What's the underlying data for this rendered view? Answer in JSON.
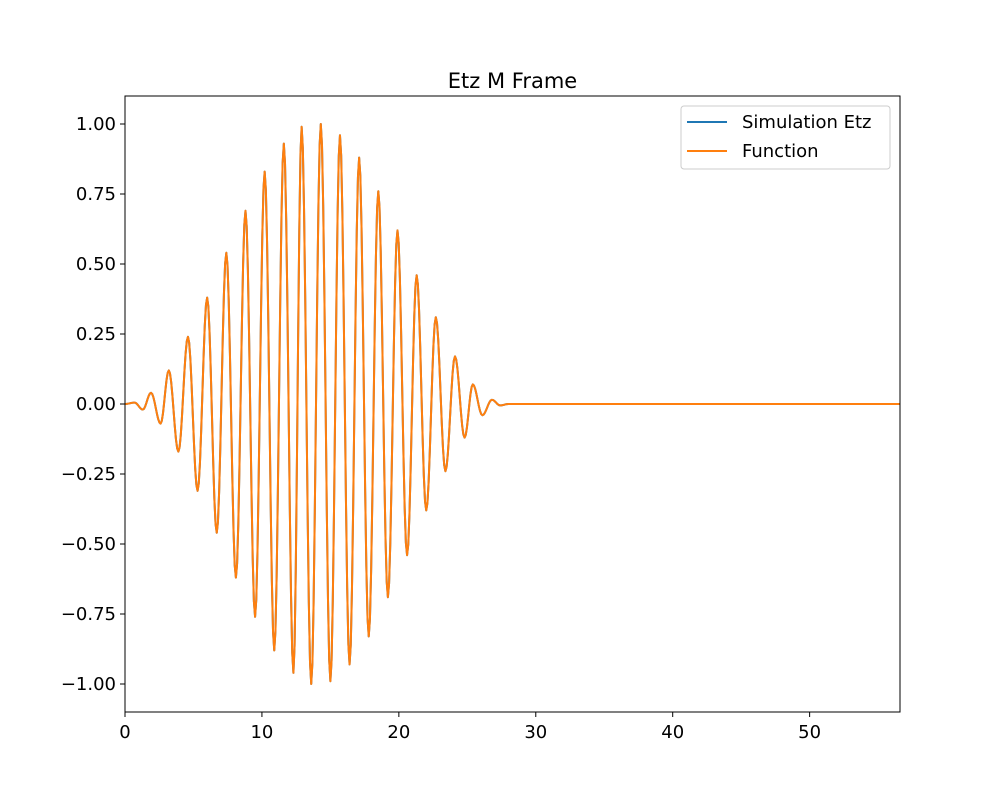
{
  "chart_data": {
    "type": "line",
    "title": "Etz M Frame",
    "xlabel": "",
    "ylabel": "",
    "xlim": [
      0,
      56.6
    ],
    "ylim": [
      -1.1,
      1.1
    ],
    "x_ticks": [
      0,
      10,
      20,
      30,
      40,
      50
    ],
    "x_tick_labels": [
      "0",
      "10",
      "20",
      "30",
      "40",
      "50"
    ],
    "y_ticks": [
      1.0,
      0.75,
      0.5,
      0.25,
      0.0,
      -0.25,
      -0.5,
      -0.75,
      -1.0
    ],
    "y_tick_labels": [
      "1.00",
      "0.75",
      "0.50",
      "0.25",
      "0.00",
      "−0.25",
      "−0.50",
      "−0.75",
      "−1.00"
    ],
    "grid": false,
    "legend_position": "top-right",
    "series": [
      {
        "name": "Simulation Etz",
        "color": "#1f77b4",
        "envelope": "gaussian",
        "x": [
          0.0,
          0.7,
          1.3,
          1.9,
          2.6,
          3.2,
          3.9,
          4.6,
          5.3,
          6.0,
          6.7,
          7.4,
          8.1,
          8.8,
          9.5,
          10.2,
          10.9,
          11.6,
          12.3,
          12.9,
          13.6,
          14.3,
          15.0,
          15.7,
          16.4,
          17.1,
          17.8,
          18.5,
          19.2,
          19.9,
          20.6,
          21.3,
          22.0,
          22.7,
          23.4,
          24.1,
          24.8,
          25.4,
          26.1,
          26.8,
          27.4,
          28.0,
          56.6
        ],
        "y": [
          0.0,
          0.005,
          -0.02,
          0.04,
          -0.07,
          0.12,
          -0.17,
          0.24,
          -0.31,
          0.38,
          -0.46,
          0.54,
          -0.62,
          0.69,
          -0.76,
          0.83,
          -0.88,
          0.93,
          -0.96,
          0.99,
          -1.0,
          1.0,
          -0.99,
          0.96,
          -0.93,
          0.88,
          -0.83,
          0.76,
          -0.69,
          0.62,
          -0.54,
          0.46,
          -0.38,
          0.31,
          -0.24,
          0.17,
          -0.12,
          0.07,
          -0.04,
          0.015,
          -0.005,
          0.0,
          0.0
        ]
      },
      {
        "name": "Function",
        "color": "#ff7f0e",
        "envelope": "gaussian",
        "x": [
          0.0,
          0.7,
          1.3,
          1.9,
          2.6,
          3.2,
          3.9,
          4.6,
          5.3,
          6.0,
          6.7,
          7.4,
          8.1,
          8.8,
          9.5,
          10.2,
          10.9,
          11.6,
          12.3,
          12.9,
          13.6,
          14.3,
          15.0,
          15.7,
          16.4,
          17.1,
          17.8,
          18.5,
          19.2,
          19.9,
          20.6,
          21.3,
          22.0,
          22.7,
          23.4,
          24.1,
          24.8,
          25.4,
          26.1,
          26.8,
          27.4,
          28.0,
          56.6
        ],
        "y": [
          0.0,
          0.005,
          -0.02,
          0.04,
          -0.07,
          0.12,
          -0.17,
          0.24,
          -0.31,
          0.38,
          -0.46,
          0.54,
          -0.62,
          0.69,
          -0.76,
          0.83,
          -0.88,
          0.93,
          -0.96,
          0.99,
          -1.0,
          1.0,
          -0.99,
          0.96,
          -0.93,
          0.88,
          -0.83,
          0.76,
          -0.69,
          0.62,
          -0.54,
          0.46,
          -0.38,
          0.31,
          -0.24,
          0.17,
          -0.12,
          0.07,
          -0.04,
          0.015,
          -0.005,
          0.0,
          0.0
        ]
      }
    ]
  }
}
